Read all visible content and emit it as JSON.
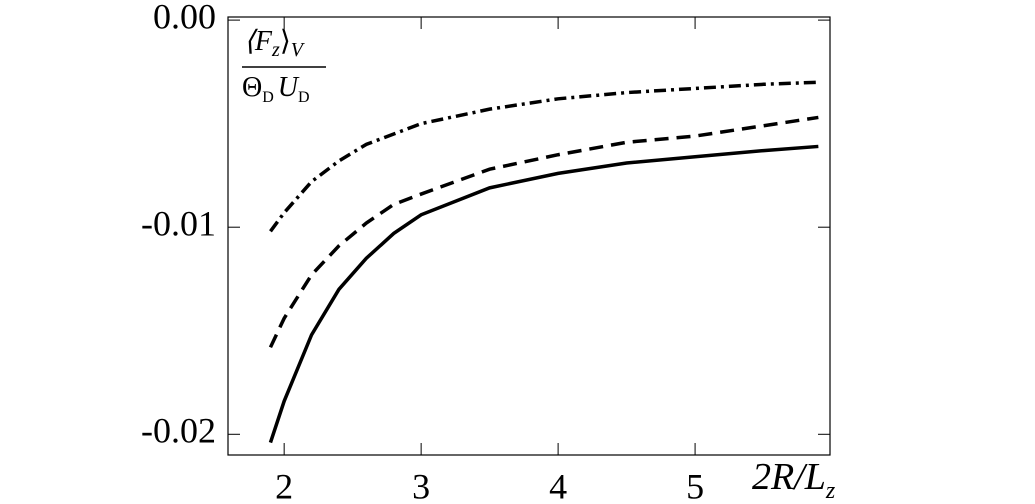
{
  "chart_data": {
    "type": "line",
    "ylabel_numerator": [
      "⟨F",
      "z",
      "⟩",
      "V"
    ],
    "ylabel_denominator": [
      "Θ",
      "D",
      "U",
      "D"
    ],
    "xlabel": [
      "2R/L",
      "z"
    ],
    "x": [
      1.9,
      2.0,
      2.2,
      2.4,
      2.6,
      2.8,
      3.0,
      3.5,
      4.0,
      4.5,
      5.0,
      5.5,
      5.9
    ],
    "series": [
      {
        "style": "solid",
        "color": "#000000",
        "values": [
          -0.0204,
          -0.0184,
          -0.0152,
          -0.013,
          -0.0115,
          -0.0103,
          -0.0094,
          -0.0081,
          -0.0074,
          -0.0069,
          -0.0066,
          -0.0063,
          -0.0061
        ]
      },
      {
        "style": "dashed",
        "color": "#000000",
        "values": [
          -0.0158,
          -0.0144,
          -0.0123,
          -0.0109,
          -0.0098,
          -0.0089,
          -0.0084,
          -0.0072,
          -0.0065,
          -0.0059,
          -0.0056,
          -0.0051,
          -0.0047
        ]
      },
      {
        "style": "dashdot",
        "color": "#000000",
        "values": [
          -0.0102,
          -0.0093,
          -0.0078,
          -0.0068,
          -0.006,
          -0.0055,
          -0.005,
          -0.0043,
          -0.0038,
          -0.0035,
          -0.0033,
          -0.0031,
          -0.003
        ]
      }
    ],
    "xlim": [
      1.59,
      5.985
    ],
    "xticks": [
      2,
      3,
      4,
      5
    ],
    "ylim": [
      -0.021,
      0.00015
    ],
    "yticks": [
      {
        "value": 0,
        "label": "0.00"
      },
      -0.01,
      -0.02
    ],
    "grid": false
  }
}
